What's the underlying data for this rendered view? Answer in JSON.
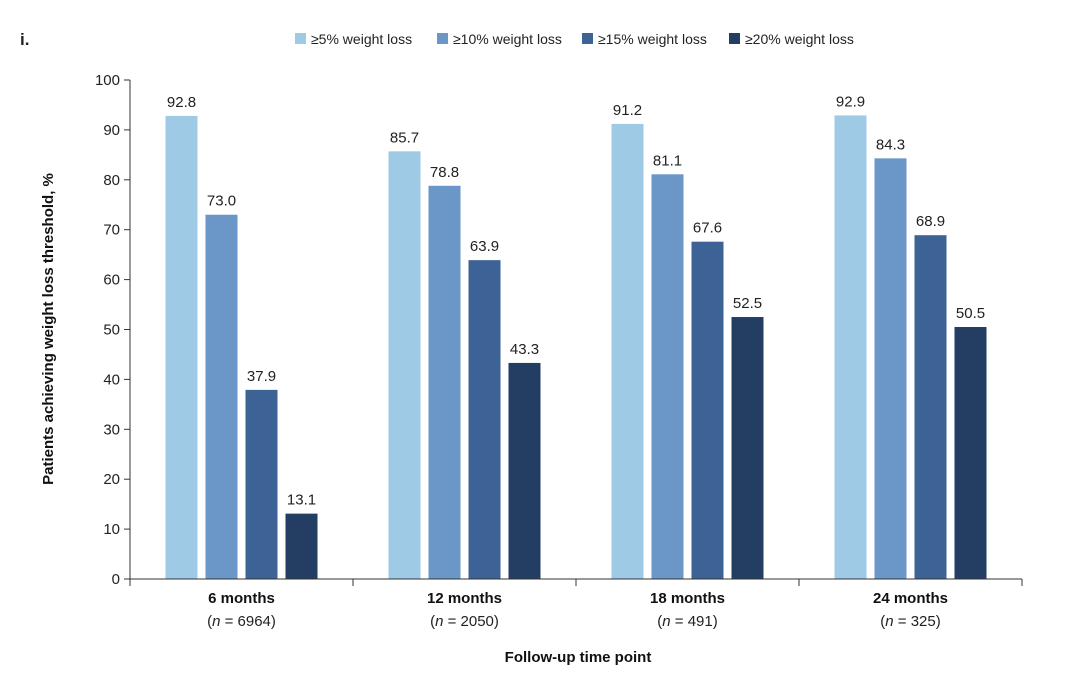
{
  "panel_label": "i.",
  "chart_data": {
    "type": "bar",
    "title": "",
    "xlabel": "Follow-up time point",
    "ylabel": "Patients achieving weight loss threshold, %",
    "ylim": [
      0,
      100
    ],
    "yticks": [
      0,
      10,
      20,
      30,
      40,
      50,
      60,
      70,
      80,
      90,
      100
    ],
    "categories": [
      "6 months",
      "12 months",
      "18 months",
      "24 months"
    ],
    "n_prefix": "(",
    "n_italic": "n",
    "n_values": [
      "=  6964)",
      "= 2050)",
      "= 491)",
      "= 325)"
    ],
    "series": [
      {
        "name": "≥5% weight loss",
        "color": "#9ecae6",
        "values": [
          92.8,
          85.7,
          91.2,
          92.9
        ],
        "labels": [
          "92.8",
          "85.7",
          "91.2",
          "92.9"
        ]
      },
      {
        "name": "≥10% weight loss",
        "color": "#6a96c8",
        "values": [
          73.0,
          78.8,
          81.1,
          84.3
        ],
        "labels": [
          "73.0",
          "78.8",
          "81.1",
          "84.3"
        ]
      },
      {
        "name": "≥15% weight loss",
        "color": "#3d6296",
        "values": [
          37.9,
          63.9,
          67.6,
          68.9
        ],
        "labels": [
          "37.9",
          "63.9",
          "67.6",
          "68.9"
        ]
      },
      {
        "name": "≥20% weight loss",
        "color": "#233d63",
        "values": [
          13.1,
          43.3,
          52.5,
          50.5
        ],
        "labels": [
          "13.1",
          "43.3",
          "52.5",
          "50.5"
        ]
      }
    ],
    "legend_position": "top",
    "grid": false
  }
}
